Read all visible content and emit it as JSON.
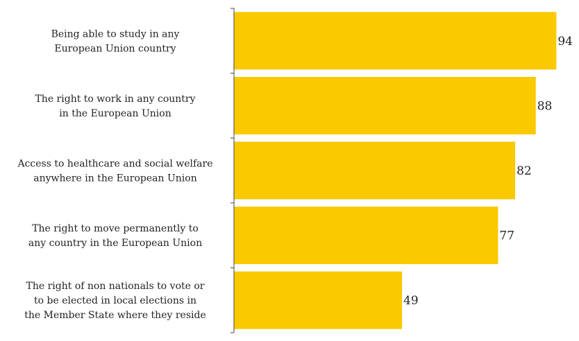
{
  "chart_data": {
    "type": "bar",
    "orientation": "horizontal",
    "title": "",
    "xlabel": "",
    "ylabel": "",
    "xlim": [
      0,
      100
    ],
    "grid": false,
    "legend": "none",
    "bar_color": "#FBC900",
    "categories": [
      [
        "Being able to study in any",
        "European Union country"
      ],
      [
        "The right to work in any country",
        "in the European Union"
      ],
      [
        "Access to healthcare and social welfare",
        "anywhere in the European Union"
      ],
      [
        "The right to move permanently to",
        "any country in the European Union"
      ],
      [
        "The right of non nationals to vote or",
        "to be elected in local elections in",
        "the Member State where they reside"
      ]
    ],
    "values": [
      94,
      88,
      82,
      77,
      49
    ]
  }
}
